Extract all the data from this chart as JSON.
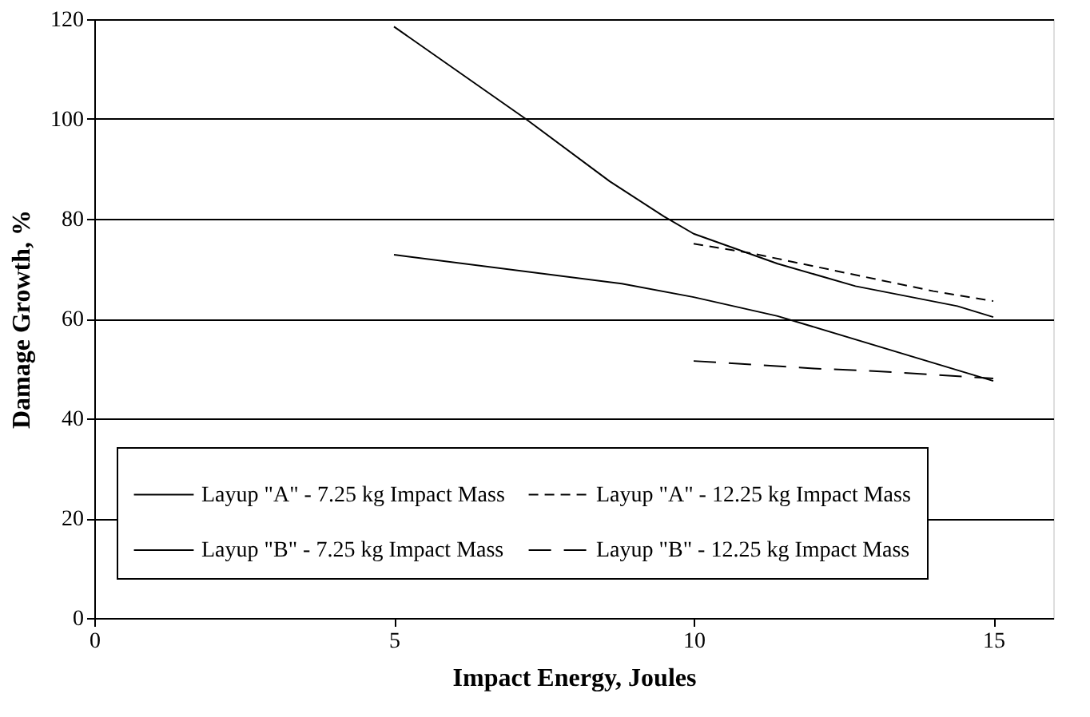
{
  "chart_data": {
    "type": "line",
    "xlabel": "Impact Energy, Joules",
    "ylabel": "Damage Growth, %",
    "xlim": [
      0,
      16
    ],
    "xticks": [
      0,
      5,
      10,
      15
    ],
    "ylim": [
      0,
      120
    ],
    "yticks": [
      0,
      20,
      40,
      60,
      80,
      100,
      120
    ],
    "grid": "y",
    "legend": "bottom",
    "marker": "none",
    "series": [
      {
        "name": "Layup \"A\" - 7.25 kg Impact Mass",
        "color": "#000000",
        "line_style": "solid",
        "x": [
          5,
          7.2,
          8.6,
          9.5,
          10,
          11.4,
          12.7,
          14.4,
          15
        ],
        "values": [
          118.5,
          100,
          87.5,
          80.5,
          77,
          71,
          66.5,
          62.5,
          60.3
        ]
      },
      {
        "name": "Layup \"A\" - 12.25 kg Impact Mass",
        "color": "#000000",
        "line_style": "dashed",
        "x": [
          10,
          11,
          12,
          13,
          14,
          15
        ],
        "values": [
          75,
          73,
          70.5,
          68,
          65.5,
          63.5
        ]
      },
      {
        "name": "Layup \"B\" - 7.25 kg Impact Mass",
        "color": "#000000",
        "line_style": "solid",
        "x": [
          5,
          8.8,
          10,
          11.4,
          15
        ],
        "values": [
          72.8,
          67,
          64.3,
          60.5,
          47.5
        ]
      },
      {
        "name": "Layup \"B\" - 12.25 kg Impact Mass",
        "color": "#000000",
        "line_style": "dashed",
        "x": [
          10,
          12,
          13,
          15
        ],
        "values": [
          51.5,
          50,
          49.5,
          48
        ]
      }
    ]
  }
}
